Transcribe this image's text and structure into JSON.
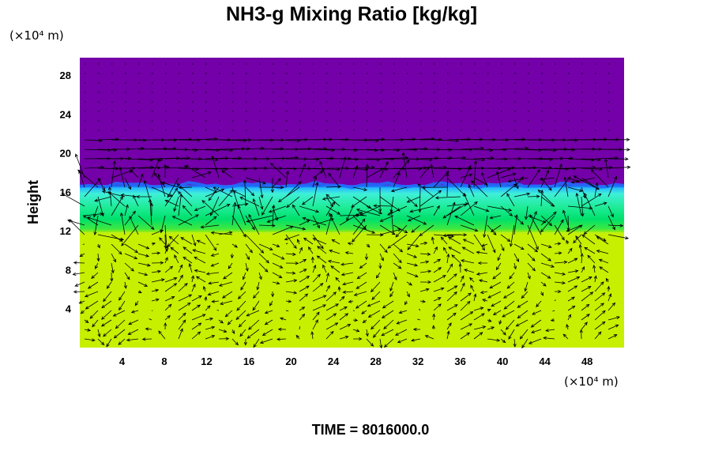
{
  "chart_data": {
    "type": "heatmap",
    "title": "NH3-g Mixing Ratio [kg/kg]",
    "ylabel": "Height",
    "xlabel": "",
    "x_unit": "(×10⁴ m)",
    "y_unit": "(×10⁴ m)",
    "xlim": [
      0,
      51.5
    ],
    "ylim": [
      0,
      29.8
    ],
    "x_ticks": [
      "4",
      "8",
      "12",
      "16",
      "20",
      "24",
      "28",
      "32",
      "36",
      "40",
      "44",
      "48"
    ],
    "y_ticks": [
      "4",
      "8",
      "12",
      "16",
      "20",
      "24",
      "28"
    ],
    "x_tick_values": [
      4,
      8,
      12,
      16,
      20,
      24,
      28,
      32,
      36,
      40,
      44,
      48
    ],
    "y_tick_values": [
      4,
      8,
      12,
      16,
      20,
      24,
      28
    ],
    "time_label": "TIME = 8016000.0",
    "colors": {
      "upper": "#7300a8",
      "interface": "#1e6fff",
      "cyan": "#3ff0d8",
      "green": "#00e06a",
      "lower": "#c6f000"
    },
    "layers": [
      {
        "name": "upper",
        "y_from": 16.7,
        "y_to": 29.8
      },
      {
        "name": "cyan band",
        "y_from": 13.5,
        "y_to": 16.7
      },
      {
        "name": "green band",
        "y_from": 11.8,
        "y_to": 13.5
      },
      {
        "name": "lower",
        "y_from": 0,
        "y_to": 11.8
      }
    ],
    "wind_vectors": "quiver overlay"
  }
}
